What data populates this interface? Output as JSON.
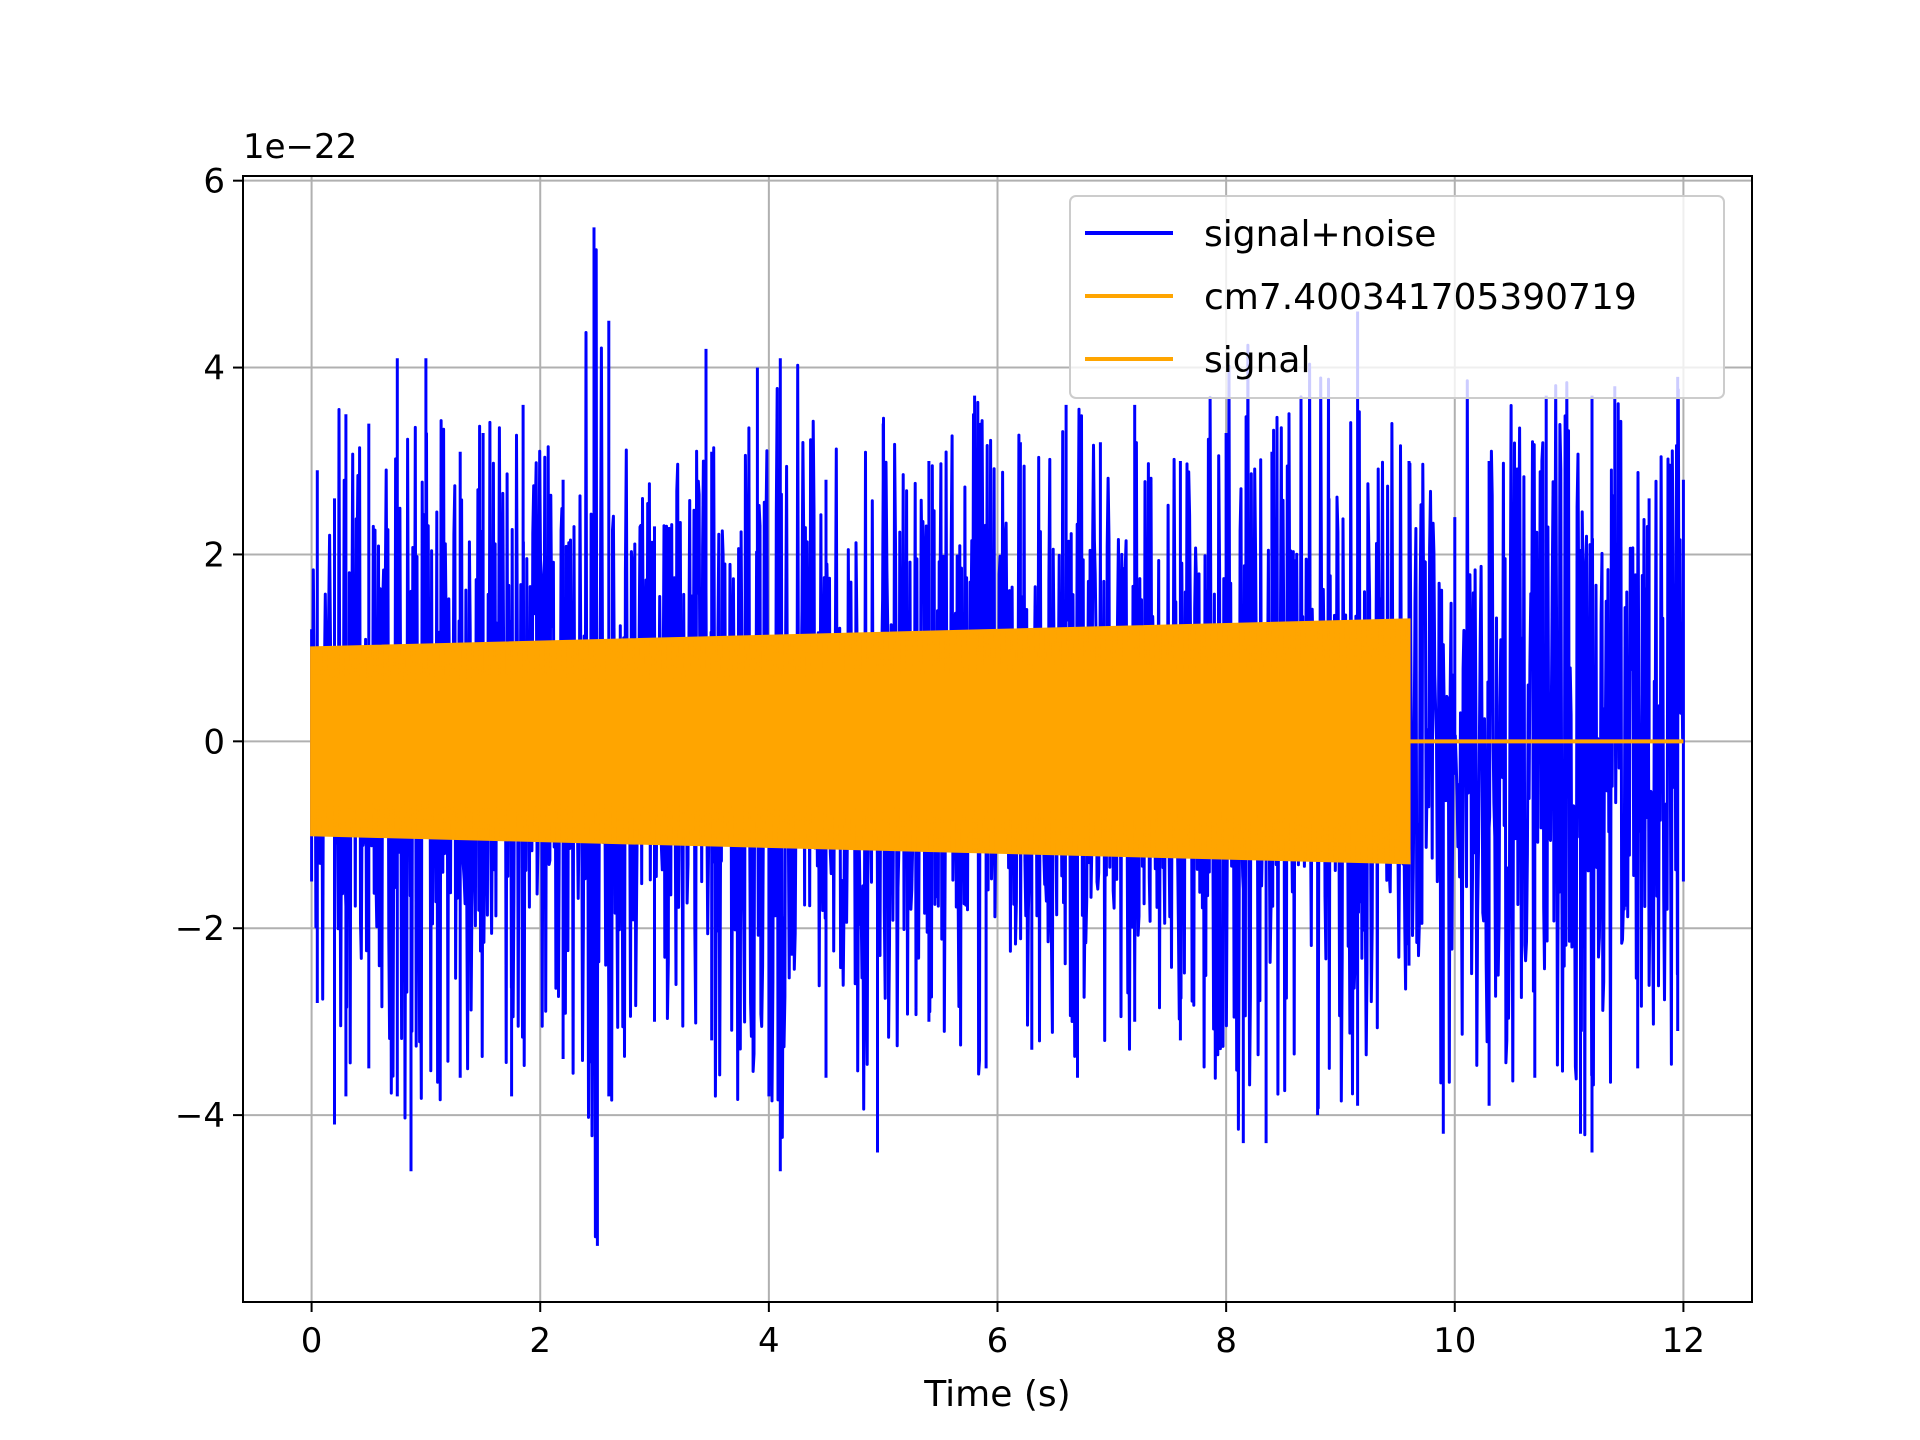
{
  "chart_data": {
    "type": "line",
    "title": "",
    "xlabel": "Time (s)",
    "ylabel": "",
    "y_offset_label": "1e−22",
    "xlim": [
      -0.6,
      12.6
    ],
    "ylim": [
      -6.0,
      6.05
    ],
    "x_ticks": [
      0,
      2,
      4,
      6,
      8,
      10,
      12
    ],
    "x_tick_labels": [
      "0",
      "2",
      "4",
      "6",
      "8",
      "10",
      "12"
    ],
    "y_ticks": [
      -4,
      -2,
      0,
      2,
      4,
      6
    ],
    "y_tick_labels": [
      "−4",
      "−2",
      "0",
      "2",
      "4",
      "6"
    ],
    "grid": true,
    "legend_position": "top-right",
    "series": [
      {
        "name": "signal+noise",
        "color": "#0000ff",
        "kind": "noise envelope",
        "x_range": [
          0,
          12
        ],
        "upper_envelope": [
          [
            0.0,
            1.2
          ],
          [
            0.05,
            2.9
          ],
          [
            0.2,
            2.6
          ],
          [
            0.3,
            3.5
          ],
          [
            0.5,
            3.4
          ],
          [
            0.75,
            4.1
          ],
          [
            1.0,
            4.1
          ],
          [
            1.3,
            3.1
          ],
          [
            1.5,
            3.3
          ],
          [
            1.85,
            3.6
          ],
          [
            2.2,
            2.8
          ],
          [
            2.47,
            5.5
          ],
          [
            2.6,
            4.5
          ],
          [
            3.0,
            2.3
          ],
          [
            3.5,
            3.1
          ],
          [
            3.45,
            4.2
          ],
          [
            3.9,
            4.0
          ],
          [
            4.1,
            4.1
          ],
          [
            4.5,
            2.8
          ],
          [
            5.0,
            3.4
          ],
          [
            5.4,
            3.0
          ],
          [
            5.8,
            3.7
          ],
          [
            6.2,
            3.2
          ],
          [
            6.6,
            3.6
          ],
          [
            6.9,
            3.2
          ],
          [
            7.2,
            3.6
          ],
          [
            7.6,
            3.0
          ],
          [
            8.0,
            3.3
          ],
          [
            8.4,
            3.1
          ],
          [
            8.9,
            2.6
          ],
          [
            9.15,
            4.6
          ],
          [
            9.6,
            3.0
          ],
          [
            10.0,
            2.4
          ],
          [
            10.3,
            3.0
          ],
          [
            10.8,
            3.7
          ],
          [
            11.2,
            3.7
          ],
          [
            11.4,
            3.8
          ],
          [
            11.7,
            2.6
          ],
          [
            11.95,
            3.9
          ],
          [
            12.0,
            2.8
          ]
        ],
        "lower_envelope": [
          [
            0.0,
            -1.5
          ],
          [
            0.05,
            -2.8
          ],
          [
            0.2,
            -4.1
          ],
          [
            0.3,
            -3.8
          ],
          [
            0.5,
            -3.5
          ],
          [
            0.75,
            -3.8
          ],
          [
            0.87,
            -4.6
          ],
          [
            1.3,
            -3.6
          ],
          [
            1.75,
            -3.8
          ],
          [
            2.2,
            -3.4
          ],
          [
            2.5,
            -5.4
          ],
          [
            2.6,
            -3.8
          ],
          [
            3.0,
            -3.0
          ],
          [
            3.5,
            -3.2
          ],
          [
            4.0,
            -3.8
          ],
          [
            4.1,
            -4.6
          ],
          [
            4.5,
            -3.6
          ],
          [
            4.95,
            -4.4
          ],
          [
            5.4,
            -3.0
          ],
          [
            5.9,
            -3.5
          ],
          [
            6.3,
            -3.3
          ],
          [
            6.7,
            -3.6
          ],
          [
            7.2,
            -3.0
          ],
          [
            7.6,
            -3.2
          ],
          [
            8.15,
            -4.3
          ],
          [
            8.35,
            -4.3
          ],
          [
            8.8,
            -4.0
          ],
          [
            9.15,
            -3.9
          ],
          [
            9.6,
            -2.4
          ],
          [
            9.9,
            -4.2
          ],
          [
            10.3,
            -3.9
          ],
          [
            10.7,
            -3.6
          ],
          [
            11.1,
            -4.2
          ],
          [
            11.2,
            -4.4
          ],
          [
            11.6,
            -3.5
          ],
          [
            11.95,
            -3.1
          ],
          [
            12.0,
            -1.5
          ]
        ],
        "typical_band": [
          -2.5,
          2.5
        ]
      },
      {
        "name": "cm7.400341705390719",
        "color": "#ffa500",
        "kind": "chirp envelope",
        "x_range": [
          0,
          9.6
        ],
        "amplitude_start": 1.0,
        "amplitude_end": 1.3
      },
      {
        "name": "signal",
        "color": "#ffa500",
        "kind": "constant",
        "x_range": [
          9.6,
          12
        ],
        "value": 0.0
      }
    ]
  }
}
